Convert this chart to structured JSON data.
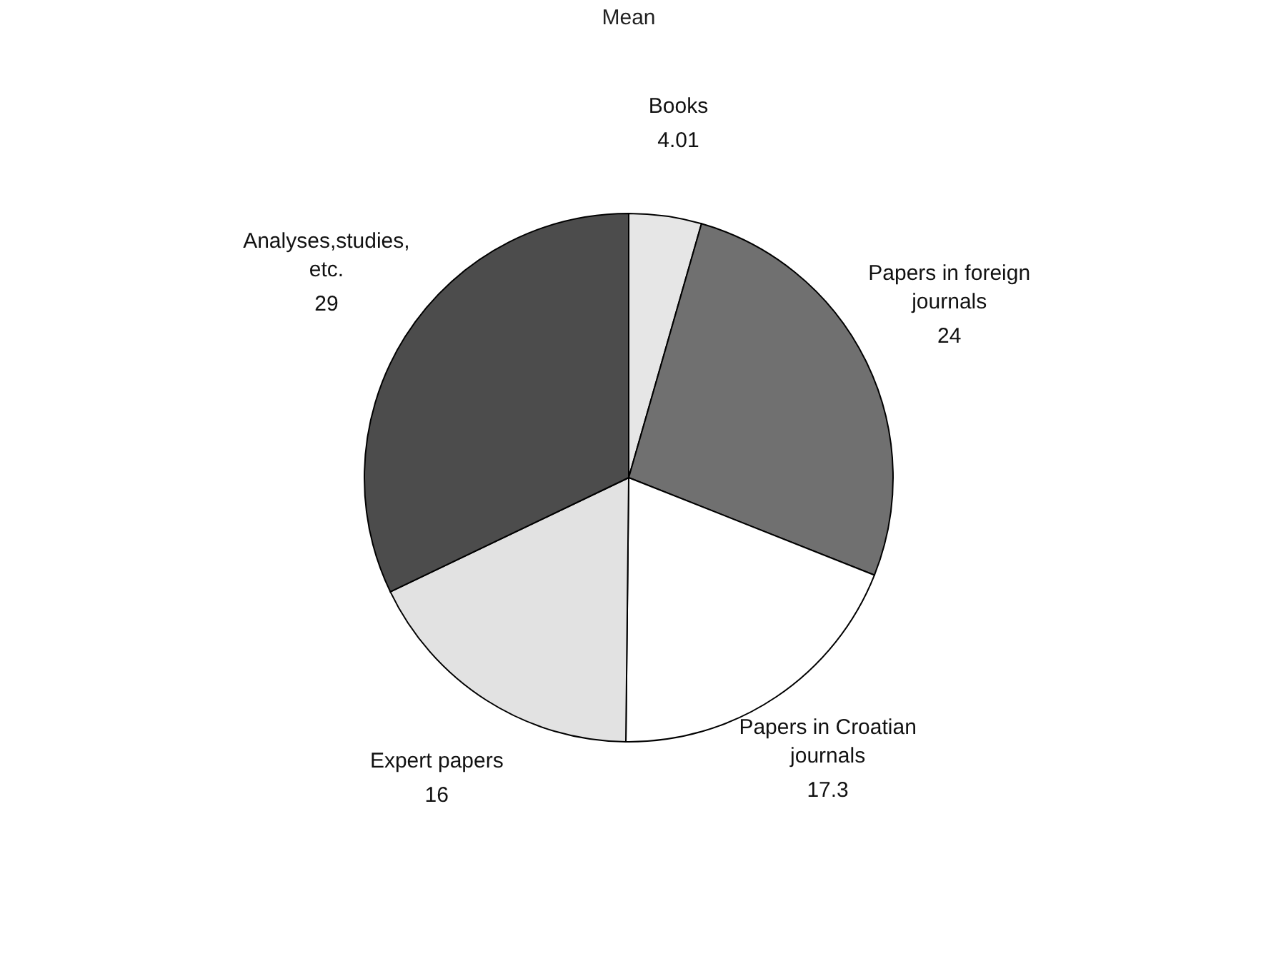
{
  "chart_data": {
    "type": "pie",
    "title": "Mean",
    "categories": [
      "Books",
      "Papers in foreign journals",
      "Papers in Croatian journals",
      "Expert papers",
      "Analyses,studies, etc."
    ],
    "values": [
      4.01,
      24,
      17.3,
      16,
      29
    ],
    "colors": [
      "#e6e6e6",
      "#707070",
      "#ffffff",
      "#e2e2e2",
      "#4c4c4c"
    ],
    "data_labels": true,
    "legend": false
  }
}
